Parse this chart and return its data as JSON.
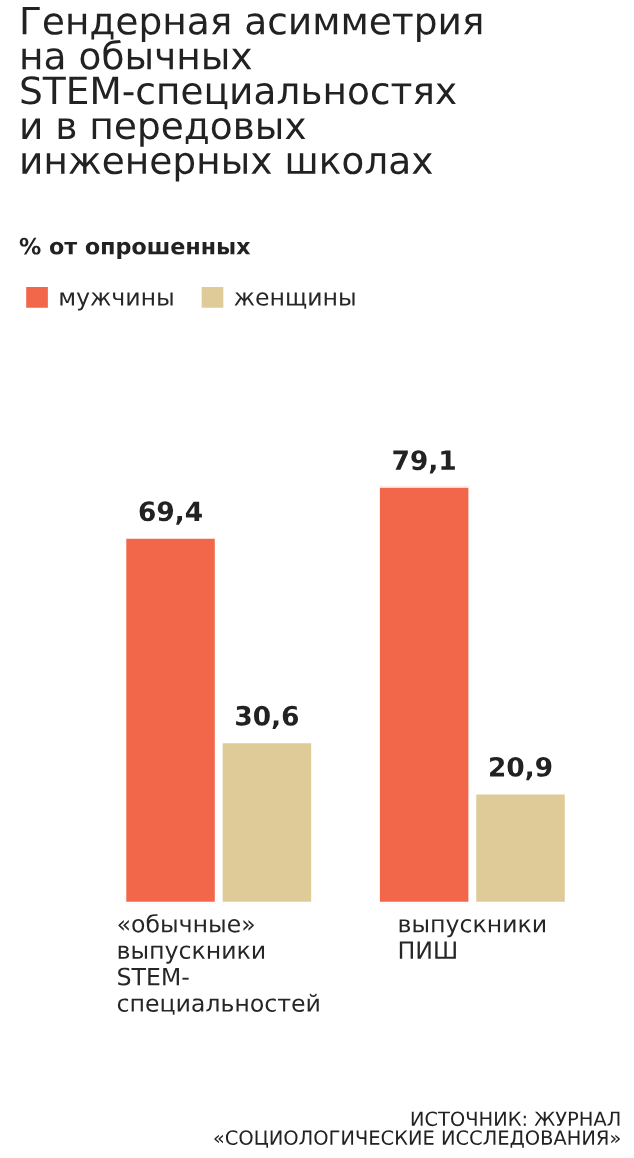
{
  "chart_data": {
    "type": "bar",
    "title": "Гендерная асимметрия\nна обычных\nSTEM-специальностях\nи в передовых\nинженерных школах",
    "subtitle": "% от опрошенных",
    "categories": [
      "«обычные»\nвыпускники\nSTEM-\nспециальностей",
      "выпускники\nПИШ"
    ],
    "series": [
      {
        "name": "мужчины",
        "color": "#f26749",
        "values": [
          69.4,
          79.1
        ],
        "value_labels": [
          "69,4",
          "79,1"
        ]
      },
      {
        "name": "женщины",
        "color": "#dfcb97",
        "values": [
          30.6,
          20.9
        ],
        "value_labels": [
          "30,6",
          "20,9"
        ]
      }
    ],
    "legend": "top left",
    "grid": false,
    "annotations": [
      "ИСТОЧНИК: ЖУРНАЛ\n«СОЦИОЛОГИЧЕСКИЕ ИССЛЕДОВАНИЯ»"
    ]
  }
}
